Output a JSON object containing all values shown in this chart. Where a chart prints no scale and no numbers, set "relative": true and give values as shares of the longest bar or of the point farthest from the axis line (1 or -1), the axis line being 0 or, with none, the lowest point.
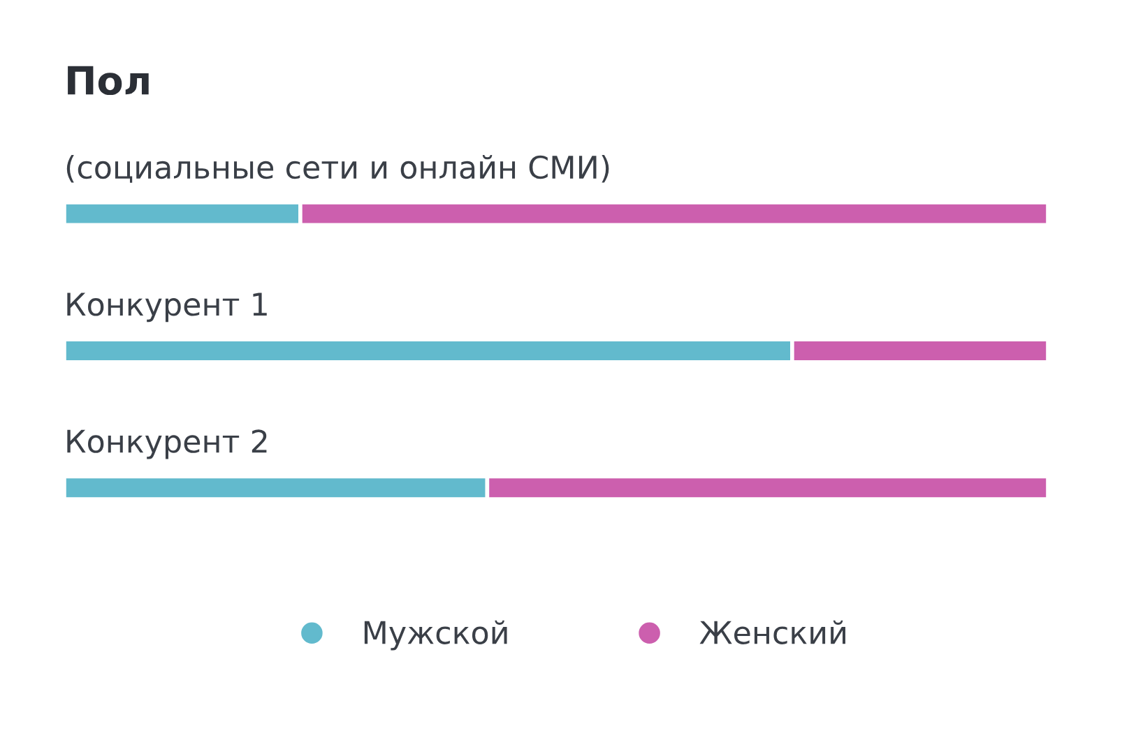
{
  "chart_data": {
    "type": "bar",
    "title": "Пол",
    "orientation": "horizontal",
    "stacked": true,
    "relative": true,
    "categories": [
      "(социальные сети и онлайн СМИ)",
      "Конкурент 1",
      "Конкурент 2"
    ],
    "series": [
      {
        "name": "Мужской",
        "color": "#62bacd",
        "values": [
          0.24,
          0.74,
          0.43
        ]
      },
      {
        "name": "Женский",
        "color": "#cc5fae",
        "values": [
          0.76,
          0.26,
          0.57
        ]
      }
    ],
    "legend": "bottom",
    "marker": "circle"
  }
}
